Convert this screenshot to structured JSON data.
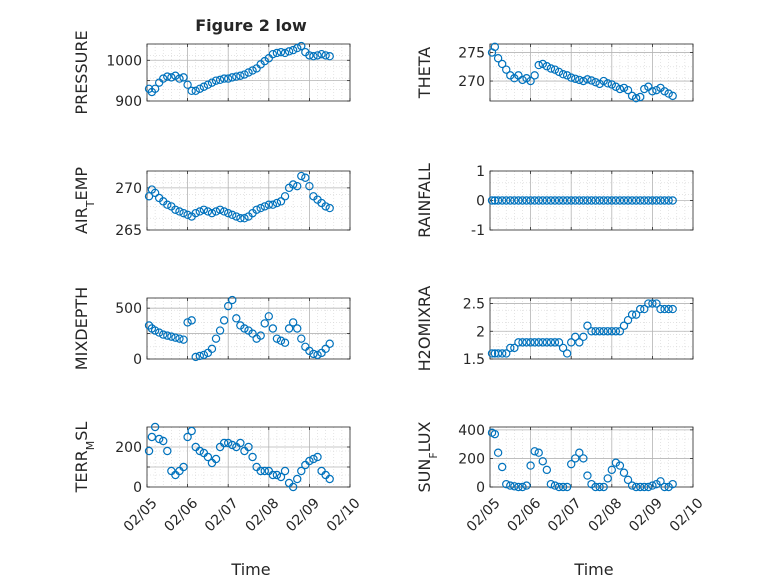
{
  "figure": {
    "title": "Figure 2 low",
    "marker_color": "#0072bd",
    "grid_color": "#b4b4b4",
    "axis_color": "#262626",
    "xlabel": "Time",
    "xticks": [
      "02/05",
      "02/06",
      "02/07",
      "02/08",
      "02/09",
      "02/10"
    ]
  },
  "chart_data": [
    {
      "type": "scatter",
      "ylabel": "PRESSURE",
      "ylabel_sub": "",
      "yticks": [
        "900",
        "950",
        "1000"
      ],
      "ytick_labels": [
        "900",
        "",
        "1000"
      ],
      "ylim": [
        900,
        1040
      ],
      "xlim": [
        0,
        5
      ],
      "grid": true,
      "x": [
        0.05,
        0.12,
        0.2,
        0.3,
        0.4,
        0.5,
        0.6,
        0.7,
        0.8,
        0.9,
        1.0,
        1.1,
        1.2,
        1.3,
        1.4,
        1.5,
        1.6,
        1.7,
        1.8,
        1.9,
        2.0,
        2.1,
        2.2,
        2.3,
        2.4,
        2.5,
        2.6,
        2.7,
        2.8,
        2.9,
        3.0,
        3.1,
        3.2,
        3.3,
        3.4,
        3.5,
        3.6,
        3.7,
        3.8,
        3.9,
        4.0,
        4.1,
        4.2,
        4.3,
        4.4,
        4.5
      ],
      "y": [
        930,
        922,
        930,
        945,
        955,
        960,
        958,
        962,
        955,
        958,
        940,
        925,
        925,
        930,
        935,
        940,
        945,
        950,
        952,
        955,
        955,
        958,
        960,
        962,
        965,
        970,
        975,
        980,
        990,
        998,
        1005,
        1015,
        1018,
        1020,
        1018,
        1022,
        1025,
        1030,
        1035,
        1020,
        1012,
        1010,
        1012,
        1015,
        1012,
        1010
      ]
    },
    {
      "type": "scatter",
      "ylabel": "THETA",
      "ylabel_sub": "",
      "yticks": [
        "270",
        "275"
      ],
      "ytick_labels": [
        "270",
        "275"
      ],
      "ylim": [
        266.5,
        276.5
      ],
      "xlim": [
        0,
        5
      ],
      "grid": true,
      "x": [
        0.05,
        0.12,
        0.2,
        0.3,
        0.4,
        0.5,
        0.6,
        0.7,
        0.8,
        0.9,
        1.0,
        1.1,
        1.2,
        1.3,
        1.4,
        1.5,
        1.6,
        1.7,
        1.8,
        1.9,
        2.0,
        2.1,
        2.2,
        2.3,
        2.4,
        2.5,
        2.6,
        2.7,
        2.8,
        2.9,
        3.0,
        3.1,
        3.2,
        3.3,
        3.4,
        3.5,
        3.6,
        3.7,
        3.8,
        3.9,
        4.0,
        4.1,
        4.2,
        4.3,
        4.4,
        4.5
      ],
      "y": [
        275,
        276,
        274,
        273,
        272,
        271,
        270.5,
        271,
        270.2,
        270.5,
        270,
        271,
        272.8,
        273,
        272.6,
        272.2,
        272,
        271.6,
        271.2,
        271,
        270.6,
        270.4,
        270.2,
        270,
        270.3,
        270.1,
        269.8,
        269.5,
        270,
        269.6,
        269.4,
        269,
        268.6,
        268.8,
        268.4,
        267.4,
        267,
        267.2,
        268.6,
        269,
        268.2,
        268.4,
        268.8,
        268.2,
        267.8,
        267.4
      ]
    },
    {
      "type": "scatter",
      "ylabel": "AIR",
      "ylabel_sub": "T",
      "ylabel_tail": "EMP",
      "yticks": [
        "265",
        "270"
      ],
      "ytick_labels": [
        "265",
        "270"
      ],
      "ylim": [
        265,
        272
      ],
      "xlim": [
        0,
        5
      ],
      "grid": true,
      "x": [
        0.05,
        0.12,
        0.2,
        0.3,
        0.4,
        0.5,
        0.6,
        0.7,
        0.8,
        0.9,
        1.0,
        1.1,
        1.2,
        1.3,
        1.4,
        1.5,
        1.6,
        1.7,
        1.8,
        1.9,
        2.0,
        2.1,
        2.2,
        2.3,
        2.4,
        2.5,
        2.6,
        2.7,
        2.8,
        2.9,
        3.0,
        3.1,
        3.2,
        3.3,
        3.4,
        3.5,
        3.6,
        3.7,
        3.8,
        3.9,
        4.0,
        4.1,
        4.2,
        4.3,
        4.4,
        4.5
      ],
      "y": [
        269,
        269.8,
        269.4,
        268.8,
        268.4,
        268,
        267.8,
        267.4,
        267.2,
        267,
        266.8,
        266.6,
        267,
        267.2,
        267.4,
        267.2,
        267,
        267.2,
        267.4,
        267.2,
        267,
        266.8,
        266.6,
        266.4,
        266.4,
        266.6,
        267,
        267.4,
        267.6,
        267.8,
        268,
        268,
        268.2,
        268.4,
        269,
        270,
        270.4,
        270.2,
        271.4,
        271.2,
        270.2,
        269,
        268.6,
        268.2,
        267.8,
        267.6
      ]
    },
    {
      "type": "scatter",
      "ylabel": "RAINFALL",
      "ylabel_sub": "",
      "yticks": [
        "-1",
        "0",
        "1"
      ],
      "ytick_labels": [
        "-1",
        "0",
        "1"
      ],
      "ylim": [
        -1,
        1
      ],
      "xlim": [
        0,
        5
      ],
      "grid": true,
      "x": [
        0.05,
        0.12,
        0.2,
        0.3,
        0.4,
        0.5,
        0.6,
        0.7,
        0.8,
        0.9,
        1.0,
        1.1,
        1.2,
        1.3,
        1.4,
        1.5,
        1.6,
        1.7,
        1.8,
        1.9,
        2.0,
        2.1,
        2.2,
        2.3,
        2.4,
        2.5,
        2.6,
        2.7,
        2.8,
        2.9,
        3.0,
        3.1,
        3.2,
        3.3,
        3.4,
        3.5,
        3.6,
        3.7,
        3.8,
        3.9,
        4.0,
        4.1,
        4.2,
        4.3,
        4.4,
        4.5
      ],
      "y": [
        0,
        0,
        0,
        0,
        0,
        0,
        0,
        0,
        0,
        0,
        0,
        0,
        0,
        0,
        0,
        0,
        0,
        0,
        0,
        0,
        0,
        0,
        0,
        0,
        0,
        0,
        0,
        0,
        0,
        0,
        0,
        0,
        0,
        0,
        0,
        0,
        0,
        0,
        0,
        0,
        0,
        0,
        0,
        0,
        0,
        0
      ]
    },
    {
      "type": "scatter",
      "ylabel": "MIXDEPTH",
      "ylabel_sub": "",
      "yticks": [
        "0",
        "250",
        "500"
      ],
      "ytick_labels": [
        "0",
        "",
        "500"
      ],
      "ylim": [
        0,
        600
      ],
      "xlim": [
        0,
        5
      ],
      "grid": true,
      "x": [
        0.05,
        0.12,
        0.2,
        0.3,
        0.4,
        0.5,
        0.6,
        0.7,
        0.8,
        0.9,
        1.0,
        1.1,
        1.2,
        1.3,
        1.4,
        1.5,
        1.6,
        1.7,
        1.8,
        1.9,
        2.0,
        2.1,
        2.2,
        2.3,
        2.4,
        2.5,
        2.6,
        2.7,
        2.8,
        2.9,
        3.0,
        3.1,
        3.2,
        3.3,
        3.4,
        3.5,
        3.6,
        3.7,
        3.8,
        3.9,
        4.0,
        4.1,
        4.2,
        4.3,
        4.4,
        4.5
      ],
      "y": [
        330,
        300,
        280,
        260,
        240,
        230,
        220,
        210,
        200,
        190,
        360,
        380,
        20,
        30,
        40,
        60,
        100,
        200,
        280,
        380,
        520,
        580,
        400,
        330,
        300,
        280,
        250,
        200,
        230,
        350,
        420,
        300,
        200,
        180,
        160,
        300,
        360,
        300,
        200,
        120,
        80,
        50,
        40,
        60,
        100,
        150
      ]
    },
    {
      "type": "scatter",
      "ylabel": "H2OMIXRA",
      "ylabel_sub": "",
      "yticks": [
        "1.5",
        "2",
        "2.5"
      ],
      "ytick_labels": [
        "1.5",
        "2",
        "2.5"
      ],
      "ylim": [
        1.5,
        2.6
      ],
      "xlim": [
        0,
        5
      ],
      "grid": true,
      "x": [
        0.05,
        0.12,
        0.2,
        0.3,
        0.4,
        0.5,
        0.6,
        0.7,
        0.8,
        0.9,
        1.0,
        1.1,
        1.2,
        1.3,
        1.4,
        1.5,
        1.6,
        1.7,
        1.8,
        1.9,
        2.0,
        2.1,
        2.2,
        2.3,
        2.4,
        2.5,
        2.6,
        2.7,
        2.8,
        2.9,
        3.0,
        3.1,
        3.2,
        3.3,
        3.4,
        3.5,
        3.6,
        3.7,
        3.8,
        3.9,
        4.0,
        4.1,
        4.2,
        4.3,
        4.4,
        4.5
      ],
      "y": [
        1.6,
        1.6,
        1.6,
        1.6,
        1.6,
        1.7,
        1.7,
        1.8,
        1.8,
        1.8,
        1.8,
        1.8,
        1.8,
        1.8,
        1.8,
        1.8,
        1.8,
        1.8,
        1.7,
        1.6,
        1.8,
        1.9,
        1.8,
        1.9,
        2.1,
        2.0,
        2.0,
        2.0,
        2.0,
        2.0,
        2.0,
        2.0,
        2.0,
        2.1,
        2.2,
        2.3,
        2.3,
        2.4,
        2.4,
        2.5,
        2.5,
        2.5,
        2.4,
        2.4,
        2.4,
        2.4
      ]
    },
    {
      "type": "scatter",
      "ylabel": "TERR",
      "ylabel_sub": "M",
      "ylabel_tail": "SL",
      "yticks": [
        "0",
        "100",
        "200"
      ],
      "ytick_labels": [
        "0",
        "",
        "200"
      ],
      "ylim": [
        0,
        300
      ],
      "xlim": [
        0,
        5
      ],
      "grid": true,
      "x": [
        0.05,
        0.12,
        0.2,
        0.3,
        0.4,
        0.5,
        0.6,
        0.7,
        0.8,
        0.9,
        1.0,
        1.1,
        1.2,
        1.3,
        1.4,
        1.5,
        1.6,
        1.7,
        1.8,
        1.9,
        2.0,
        2.1,
        2.2,
        2.3,
        2.4,
        2.5,
        2.6,
        2.7,
        2.8,
        2.9,
        3.0,
        3.1,
        3.2,
        3.3,
        3.4,
        3.5,
        3.6,
        3.7,
        3.8,
        3.9,
        4.0,
        4.1,
        4.2,
        4.3,
        4.4,
        4.5
      ],
      "y": [
        180,
        250,
        300,
        240,
        230,
        180,
        80,
        60,
        80,
        100,
        250,
        280,
        200,
        180,
        170,
        150,
        120,
        140,
        200,
        220,
        220,
        210,
        200,
        220,
        180,
        200,
        150,
        100,
        80,
        80,
        80,
        60,
        60,
        50,
        80,
        20,
        0,
        40,
        80,
        110,
        130,
        140,
        150,
        80,
        60,
        40
      ]
    },
    {
      "type": "scatter",
      "ylabel": "SUN",
      "ylabel_sub": "F",
      "ylabel_tail": "LUX",
      "yticks": [
        "0",
        "200",
        "400"
      ],
      "ytick_labels": [
        "0",
        "200",
        "400"
      ],
      "ylim": [
        0,
        420
      ],
      "xlim": [
        0,
        5
      ],
      "grid": true,
      "x": [
        0.05,
        0.12,
        0.2,
        0.3,
        0.4,
        0.5,
        0.6,
        0.7,
        0.8,
        0.9,
        1.0,
        1.1,
        1.2,
        1.3,
        1.4,
        1.5,
        1.6,
        1.7,
        1.8,
        1.9,
        2.0,
        2.1,
        2.2,
        2.3,
        2.4,
        2.5,
        2.6,
        2.7,
        2.8,
        2.9,
        3.0,
        3.1,
        3.2,
        3.3,
        3.4,
        3.5,
        3.6,
        3.7,
        3.8,
        3.9,
        4.0,
        4.1,
        4.2,
        4.3,
        4.4,
        4.5
      ],
      "y": [
        380,
        370,
        240,
        140,
        20,
        10,
        5,
        0,
        0,
        10,
        150,
        250,
        240,
        180,
        120,
        20,
        10,
        0,
        0,
        0,
        160,
        200,
        240,
        200,
        80,
        20,
        0,
        0,
        0,
        60,
        120,
        170,
        150,
        100,
        50,
        10,
        0,
        0,
        0,
        0,
        10,
        20,
        40,
        0,
        0,
        20
      ]
    }
  ]
}
